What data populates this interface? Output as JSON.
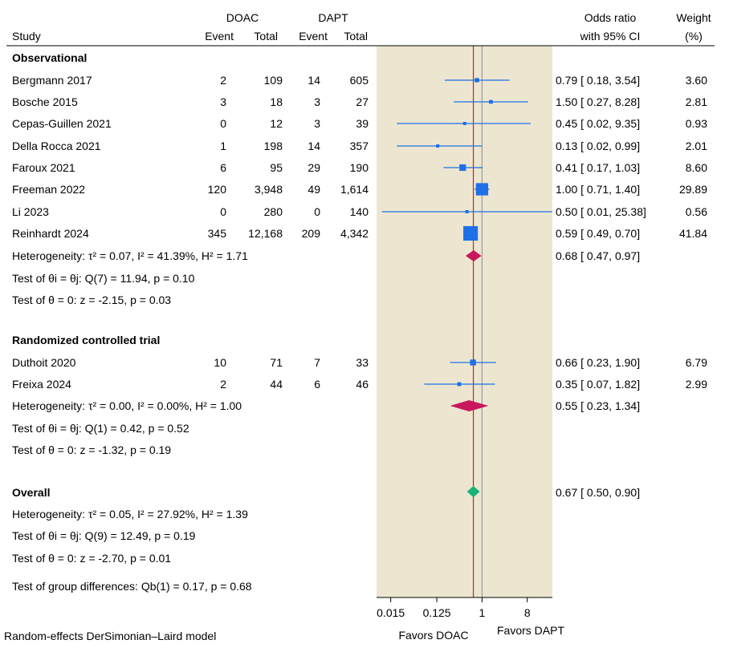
{
  "header": {
    "doac": "DOAC",
    "dapt": "DAPT",
    "study": "Study",
    "event_a": "Event",
    "total_a": "Total",
    "event_b": "Event",
    "total_b": "Total",
    "or_line1": "Odds ratio",
    "or_line2": "with 95% CI",
    "weight_line1": "Weight",
    "weight_line2": "(%)"
  },
  "groups": [
    {
      "title": "Observational",
      "studies": [
        {
          "name": "Bergmann 2017",
          "ev_a": "2",
          "tot_a": "109",
          "ev_b": "14",
          "tot_b": "605",
          "or": 0.79,
          "lo": 0.18,
          "hi": 3.54,
          "ci_text": "0.79 [ 0.18,    3.54]",
          "weight": "3.60"
        },
        {
          "name": "Bosche 2015",
          "ev_a": "3",
          "tot_a": "18",
          "ev_b": "3",
          "tot_b": "27",
          "or": 1.5,
          "lo": 0.27,
          "hi": 8.28,
          "ci_text": "1.50 [ 0.27,    8.28]",
          "weight": "2.81"
        },
        {
          "name": "Cepas-Guillen 2021",
          "ev_a": "0",
          "tot_a": "12",
          "ev_b": "3",
          "tot_b": "39",
          "or": 0.45,
          "lo": 0.02,
          "hi": 9.35,
          "ci_text": "0.45 [ 0.02,    9.35]",
          "weight": "0.93"
        },
        {
          "name": "Della Rocca 2021",
          "ev_a": "1",
          "tot_a": "198",
          "ev_b": "14",
          "tot_b": "357",
          "or": 0.13,
          "lo": 0.02,
          "hi": 0.99,
          "ci_text": "0.13 [ 0.02,    0.99]",
          "weight": "2.01"
        },
        {
          "name": "Faroux 2021",
          "ev_a": "6",
          "tot_a": "95",
          "ev_b": "29",
          "tot_b": "190",
          "or": 0.41,
          "lo": 0.17,
          "hi": 1.03,
          "ci_text": "0.41 [ 0.17,    1.03]",
          "weight": "8.60"
        },
        {
          "name": "Freeman 2022",
          "ev_a": "120",
          "tot_a": "3,948",
          "ev_b": "49",
          "tot_b": "1,614",
          "or": 1.0,
          "lo": 0.71,
          "hi": 1.4,
          "ci_text": "1.00 [ 0.71,    1.40]",
          "weight": "29.89"
        },
        {
          "name": "Li 2023",
          "ev_a": "0",
          "tot_a": "280",
          "ev_b": "0",
          "tot_b": "140",
          "or": 0.5,
          "lo": 0.01,
          "hi": 25.38,
          "ci_text": "0.50 [ 0.01,  25.38]",
          "weight": "0.56"
        },
        {
          "name": "Reinhardt 2024",
          "ev_a": "345",
          "tot_a": "12,168",
          "ev_b": "209",
          "tot_b": "4,342",
          "or": 0.59,
          "lo": 0.49,
          "hi": 0.7,
          "ci_text": "0.59 [ 0.49,    0.70]",
          "weight": "41.84"
        }
      ],
      "pooled": {
        "or": 0.68,
        "lo": 0.47,
        "hi": 0.97,
        "ci_text": "0.68 [ 0.47,    0.97]",
        "color": "#c8175d"
      },
      "stats": [
        "Heterogeneity: τ² = 0.07, I² = 41.39%, H² = 1.71",
        "Test of θi = θj: Q(7) = 11.94, p = 0.10",
        "Test of θ = 0: z = -2.15, p = 0.03"
      ]
    },
    {
      "title": "Randomized controlled trial",
      "studies": [
        {
          "name": "Duthoit 2020",
          "ev_a": "10",
          "tot_a": "71",
          "ev_b": "7",
          "tot_b": "33",
          "or": 0.66,
          "lo": 0.23,
          "hi": 1.9,
          "ci_text": "0.66 [ 0.23,    1.90]",
          "weight": "6.79"
        },
        {
          "name": "Freixa 2024",
          "ev_a": "2",
          "tot_a": "44",
          "ev_b": "6",
          "tot_b": "46",
          "or": 0.35,
          "lo": 0.07,
          "hi": 1.82,
          "ci_text": "0.35 [ 0.07,    1.82]",
          "weight": "2.99"
        }
      ],
      "pooled": {
        "or": 0.55,
        "lo": 0.23,
        "hi": 1.34,
        "ci_text": "0.55 [ 0.23,    1.34]",
        "color": "#c8175d"
      },
      "stats": [
        "Heterogeneity: τ² = 0.00, I² = 0.00%, H² = 1.00",
        "Test of θi = θj: Q(1) = 0.42, p = 0.52",
        "Test of θ = 0: z = -1.32, p = 0.19"
      ]
    }
  ],
  "overall": {
    "title": "Overall",
    "or": 0.67,
    "lo": 0.5,
    "hi": 0.9,
    "ci_text": "0.67 [ 0.50,    0.90]",
    "color": "#19b27b",
    "stats": [
      "Heterogeneity: τ² = 0.05, I² = 27.92%, H² = 1.39",
      "Test of θi = θj: Q(9) = 12.49, p = 0.19",
      "Test of θ = 0: z = -2.70, p = 0.01"
    ],
    "group_diff": "Test of group differences: Qb(1) = 0.17, p = 0.68"
  },
  "chart_data": {
    "type": "forest",
    "x_scale": "log2",
    "xlim": [
      0.0078125,
      25.38
    ],
    "x_ticks": [
      0.015,
      0.125,
      1,
      8
    ],
    "x_tick_labels": [
      "0.015",
      "0.125",
      "1",
      "8"
    ],
    "null_line": 1,
    "overall_line": 0.67,
    "favors_left": "Favors DOAC",
    "favors_right": "Favors DAPT",
    "footnote": "Random-effects DerSimonian–Laird model",
    "colors": {
      "panel": "#ece6d0",
      "marker": "#1f6fe8",
      "null_line": "#9a9a9a",
      "overall_line": "#c0272d",
      "favors_left": "#2e9a2e"
    }
  }
}
